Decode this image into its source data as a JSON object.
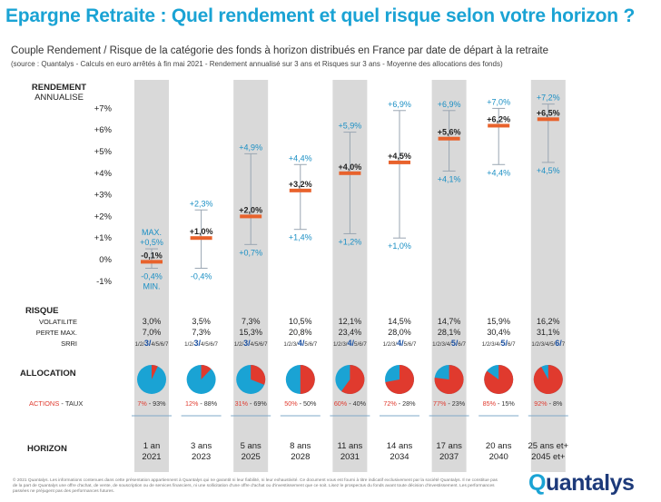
{
  "title": "Epargne Retraite : Quel rendement et quel risque selon votre horizon ?",
  "subtitle": "Couple Rendement / Risque de la catégorie des fonds à horizon distribués en France par date de départ à la retraite",
  "source": "(source : Quantalys - Calculs en euro arrêtés à fin mai 2021 - Rendement annualisé sur 3 ans et Risques sur 3 ans - Moyenne des allocations des fonds)",
  "labels": {
    "rendement": "RENDEMENT",
    "annualise": "ANNUALISE",
    "risque": "RISQUE",
    "volatilite": "VOLATILITE",
    "perte_max": "PERTE MAX.",
    "srri": "SRRI",
    "allocation": "ALLOCATION",
    "actions": "ACTIONS",
    "taux": " - TAUX",
    "horizon": "HORIZON",
    "max": "MAX.",
    "min": "MIN."
  },
  "colors": {
    "title": "#1aa3d4",
    "min_max": "#1a8fc4",
    "median": "#e8622c",
    "actions": "#e03a2e",
    "taux": "#1aa3d4",
    "column_bg": "#d9d9d9"
  },
  "chart_data": {
    "type": "range",
    "ylabel": "RENDEMENT ANNUALISE",
    "yticks": [
      "+7%",
      "+6%",
      "+5%",
      "+4%",
      "+3%",
      "+2%",
      "+1%",
      "0%",
      "-1%"
    ],
    "ylim": [
      -1,
      7
    ],
    "series": [
      {
        "horizon": "1 an",
        "year": "2021",
        "max": 0.5,
        "median": -0.1,
        "min": -0.4,
        "max_label": "+0,5%",
        "median_label": "-0,1%",
        "min_label": "-0,4%",
        "volatilite": "3,0%",
        "perte_max": "7,0%",
        "srri": 3,
        "actions": 7,
        "taux": 93,
        "alloc_label": "7% - 93%",
        "shaded": true
      },
      {
        "horizon": "3 ans",
        "year": "2023",
        "max": 2.3,
        "median": 1.0,
        "min": -0.4,
        "max_label": "+2,3%",
        "median_label": "+1,0%",
        "min_label": "-0,4%",
        "volatilite": "3,5%",
        "perte_max": "7,3%",
        "srri": 3,
        "actions": 12,
        "taux": 88,
        "alloc_label": "12% - 88%",
        "shaded": false
      },
      {
        "horizon": "5 ans",
        "year": "2025",
        "max": 4.9,
        "median": 2.0,
        "min": 0.7,
        "max_label": "+4,9%",
        "median_label": "+2,0%",
        "min_label": "+0,7%",
        "volatilite": "7,3%",
        "perte_max": "15,3%",
        "srri": 3,
        "actions": 31,
        "taux": 69,
        "alloc_label": "31% - 69%",
        "shaded": true
      },
      {
        "horizon": "8 ans",
        "year": "2028",
        "max": 4.4,
        "median": 3.2,
        "min": 1.4,
        "max_label": "+4,4%",
        "median_label": "+3,2%",
        "min_label": "+1,4%",
        "volatilite": "10,5%",
        "perte_max": "20,8%",
        "srri": 4,
        "actions": 50,
        "taux": 50,
        "alloc_label": "50% - 50%",
        "shaded": false
      },
      {
        "horizon": "11 ans",
        "year": "2031",
        "max": 5.9,
        "median": 4.0,
        "min": 1.2,
        "max_label": "+5,9%",
        "median_label": "+4,0%",
        "min_label": "+1,2%",
        "volatilite": "12,1%",
        "perte_max": "23,4%",
        "srri": 4,
        "actions": 60,
        "taux": 40,
        "alloc_label": "60% - 40%",
        "shaded": true
      },
      {
        "horizon": "14 ans",
        "year": "2034",
        "max": 6.9,
        "median": 4.5,
        "min": 1.0,
        "max_label": "+6,9%",
        "median_label": "+4,5%",
        "min_label": "+1,0%",
        "volatilite": "14,5%",
        "perte_max": "28,0%",
        "srri": 4,
        "actions": 72,
        "taux": 28,
        "alloc_label": "72% - 28%",
        "shaded": false
      },
      {
        "horizon": "17 ans",
        "year": "2037",
        "max": 6.9,
        "median": 5.6,
        "min": 4.1,
        "max_label": "+6,9%",
        "median_label": "+5,6%",
        "min_label": "+4,1%",
        "volatilite": "14,7%",
        "perte_max": "28,1%",
        "srri": 5,
        "actions": 77,
        "taux": 23,
        "alloc_label": "77% - 23%",
        "shaded": true
      },
      {
        "horizon": "20 ans",
        "year": "2040",
        "max": 7.0,
        "median": 6.2,
        "min": 4.4,
        "max_label": "+7,0%",
        "median_label": "+6,2%",
        "min_label": "+4,4%",
        "volatilite": "15,9%",
        "perte_max": "30,4%",
        "srri": 5,
        "actions": 85,
        "taux": 15,
        "alloc_label": "85% - 15%",
        "shaded": false
      },
      {
        "horizon": "25 ans et+",
        "year": "2045 et+",
        "max": 7.2,
        "median": 6.5,
        "min": 4.5,
        "max_label": "+7,2%",
        "median_label": "+6,5%",
        "min_label": "+4,5%",
        "volatilite": "16,2%",
        "perte_max": "31,1%",
        "srri": 6,
        "actions": 92,
        "taux": 8,
        "alloc_label": "92% - 8%",
        "shaded": true
      }
    ]
  },
  "footnote": "© 2021 Quantalys. Les informations contenues dans cette présentation appartiennent à Quantalys qui ne garantit ni leur fiabilité, ni leur exhaustivité. Ce document vous est fourni à titre indicatif exclusivement par la société Quantalys. Il ne constitue pas de la part de Quantalys une offre d'achat, de vente, de souscription ou de services financiers, ni une sollicitation d'une offre d'achat ou d'investissement que ce soit. Lisez le prospectus du fonds avant toute décision d'investissement. Les performances passées ne préjugent pas des performances futures.",
  "logo": {
    "q": "Q",
    "rest": "uantalys"
  }
}
